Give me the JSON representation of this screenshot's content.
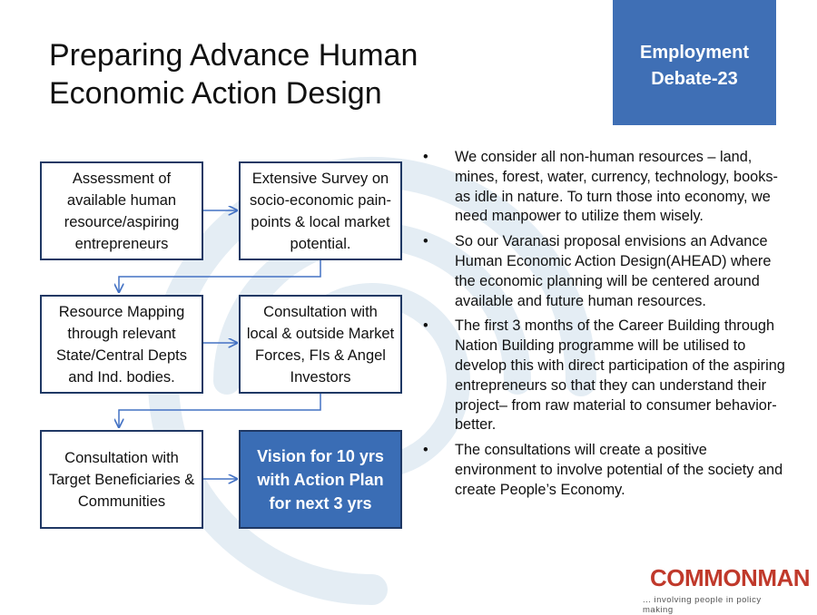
{
  "slide": {
    "title_lines": [
      "Preparing Advance Human",
      "Economic Action Design"
    ],
    "badge_lines": [
      "Employment",
      "Debate-23"
    ]
  },
  "flow": {
    "boxes": [
      "Assessment of available human resource/aspiring entrepreneurs",
      "Extensive Survey on socio-economic pain-points & local market potential.",
      "Resource Mapping through relevant State/Central Depts and Ind. bodies.",
      "Consultation with local & outside Market Forces, FIs & Angel Investors",
      "Consultation with Target Beneficiaries & Communities",
      "Vision for 10 yrs with Action Plan for next 3 yrs"
    ]
  },
  "bullets": {
    "marker": "•",
    "items": [
      "We consider all non-human resources – land, mines, forest, water, currency, technology, books- as idle in nature. To turn those into economy, we need manpower to utilize them wisely.",
      "So our Varanasi proposal envisions an Advance Human Economic Action Design(AHEAD) where the economic planning will be centered around available and future human resources.",
      "The first 3 months of the Career Building through Nation Building programme will be utilised to develop this with direct participation of the aspiring entrepreneurs so that they can understand their project– from raw material to consumer behavior- better.",
      "The consultations will create a positive environment to involve potential of the society and create People’s Economy."
    ]
  },
  "logo": {
    "text": "COMMONMAN",
    "tagline": "... involving people in policy making"
  },
  "colors": {
    "accent_blue": "#3f6fb5",
    "box_border": "#1f3864",
    "arrow": "#4472c4",
    "logo_red": "#c0392b"
  }
}
